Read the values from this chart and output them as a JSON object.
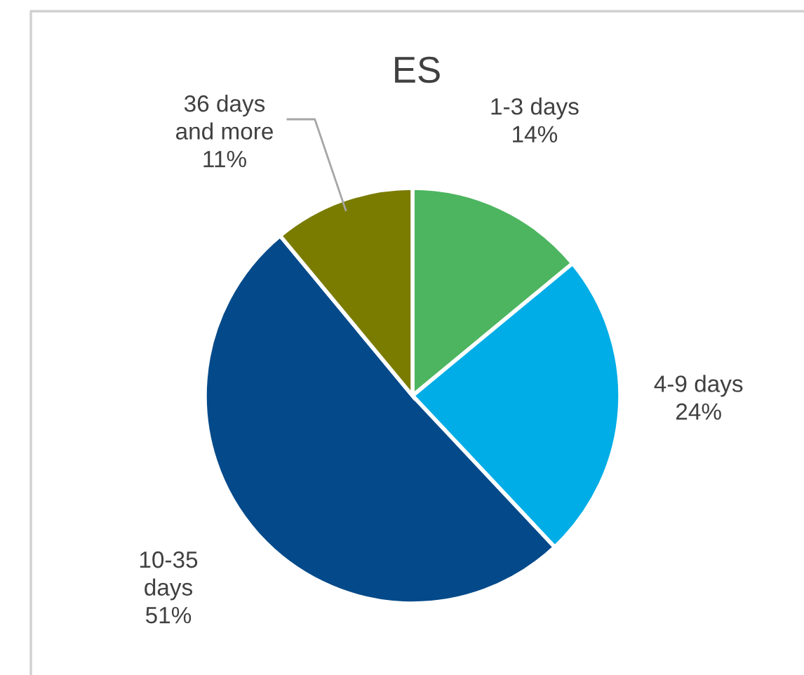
{
  "chart_data": {
    "type": "pie",
    "title": "ES",
    "categories": [
      "1-3 days",
      "4-9 days",
      "10-35 days",
      "36 days and more"
    ],
    "values": [
      14,
      24,
      51,
      11
    ],
    "colors": [
      "#4db560",
      "#00ade6",
      "#044a8a",
      "#7a7c00"
    ],
    "value_labels": [
      "14%",
      "24%",
      "51%",
      "11%"
    ]
  }
}
